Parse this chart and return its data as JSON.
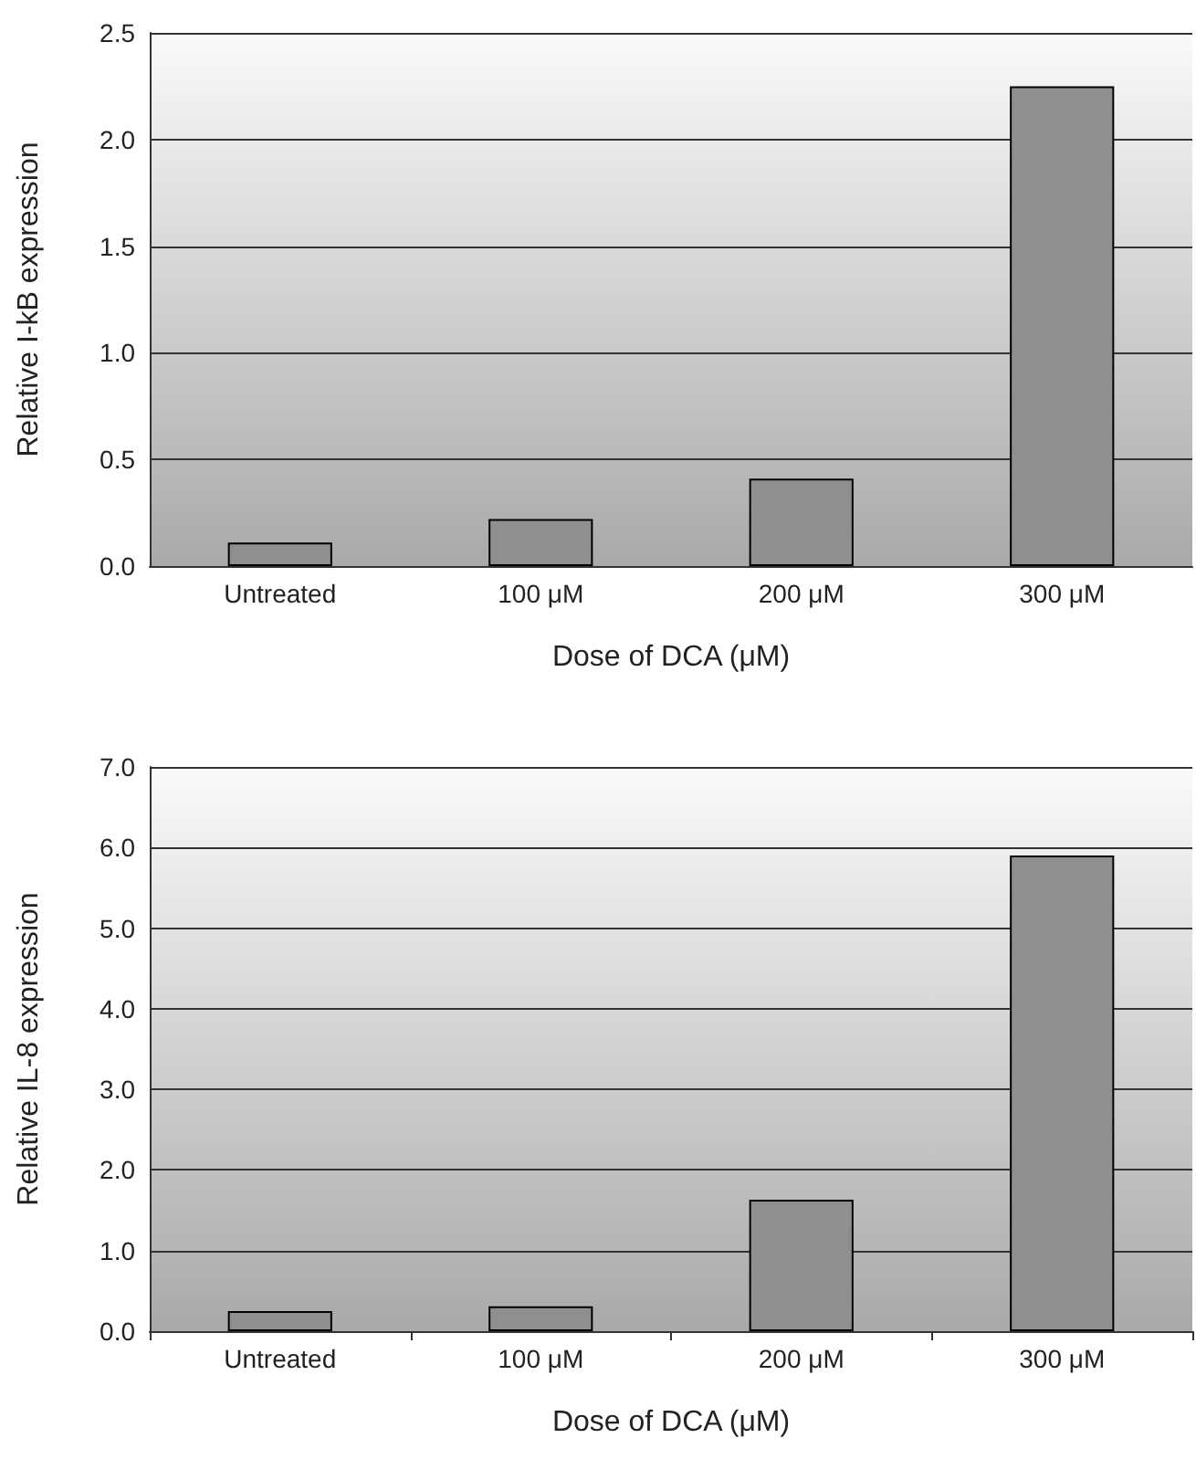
{
  "chart_data": [
    {
      "type": "bar",
      "xlabel": "Dose of DCA (μM)",
      "ylabel": "Relative I-kB expression",
      "categories": [
        "Untreated",
        "100 μM",
        "200 μM",
        "300 μM"
      ],
      "values": [
        0.11,
        0.22,
        0.41,
        2.25
      ],
      "color": "#8f8f8f",
      "ylim": [
        0,
        2.5
      ],
      "yticks": [
        {
          "value": 0,
          "label": "0.0"
        },
        {
          "value": 0.5,
          "label": "0.5"
        },
        {
          "value": 1,
          "label": "1.0"
        },
        {
          "value": 1.5,
          "label": "1.5"
        },
        {
          "value": 2,
          "label": "2.0"
        },
        {
          "value": 2.5,
          "label": "2.5"
        }
      ],
      "grid": "y"
    },
    {
      "type": "bar",
      "xlabel": "Dose of DCA (μM)",
      "ylabel": "Relative IL-8 expression",
      "categories": [
        "Untreated",
        "100 μM",
        "200 μM",
        "300 μM"
      ],
      "values": [
        0.25,
        0.31,
        1.63,
        5.9
      ],
      "color": "#8f8f8f",
      "ylim": [
        0,
        7
      ],
      "yticks": [
        {
          "value": 0,
          "label": "0.0"
        },
        {
          "value": 1,
          "label": "1.0"
        },
        {
          "value": 2,
          "label": "2.0"
        },
        {
          "value": 3,
          "label": "3.0"
        },
        {
          "value": 4,
          "label": "4.0"
        },
        {
          "value": 5,
          "label": "5.0"
        },
        {
          "value": 6,
          "label": "6.0"
        },
        {
          "value": 7,
          "label": "7.0"
        }
      ],
      "grid": "y"
    }
  ]
}
